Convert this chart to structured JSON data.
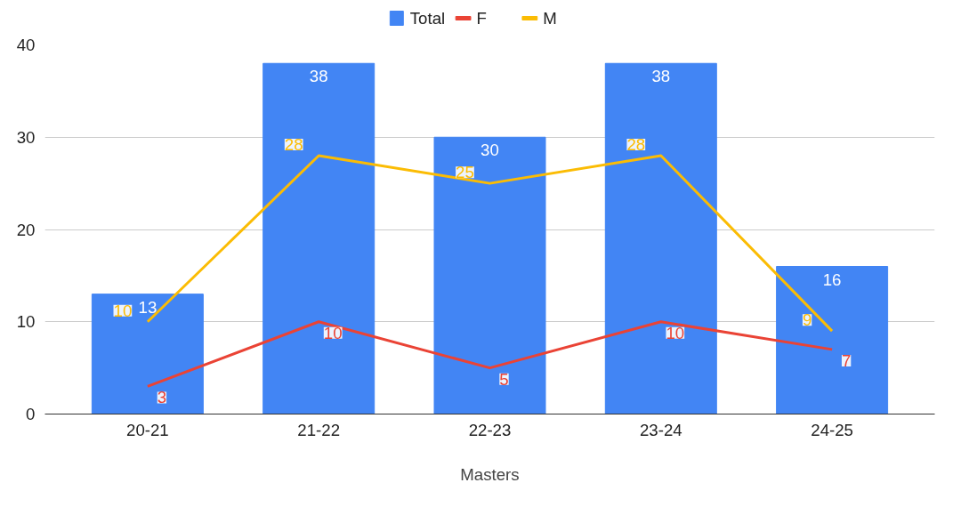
{
  "chart_data": {
    "type": "bar",
    "xlabel": "Masters",
    "categories": [
      "20-21",
      "21-22",
      "22-23",
      "23-24",
      "24-25"
    ],
    "series": [
      {
        "name": "Total",
        "color": "#4285f4",
        "values": [
          13,
          38,
          30,
          38,
          16
        ]
      },
      {
        "name": "F",
        "type": "line",
        "color": "#ea4335",
        "values": [
          3,
          10,
          5,
          10,
          7
        ]
      },
      {
        "name": "M",
        "type": "line",
        "color": "#fbbc04",
        "values": [
          10,
          28,
          25,
          28,
          9
        ]
      }
    ],
    "ylim": [
      0,
      40
    ],
    "yticks": [
      0,
      10,
      20,
      30,
      40
    ],
    "grid": "y",
    "legend": "top",
    "data_labels": true
  }
}
